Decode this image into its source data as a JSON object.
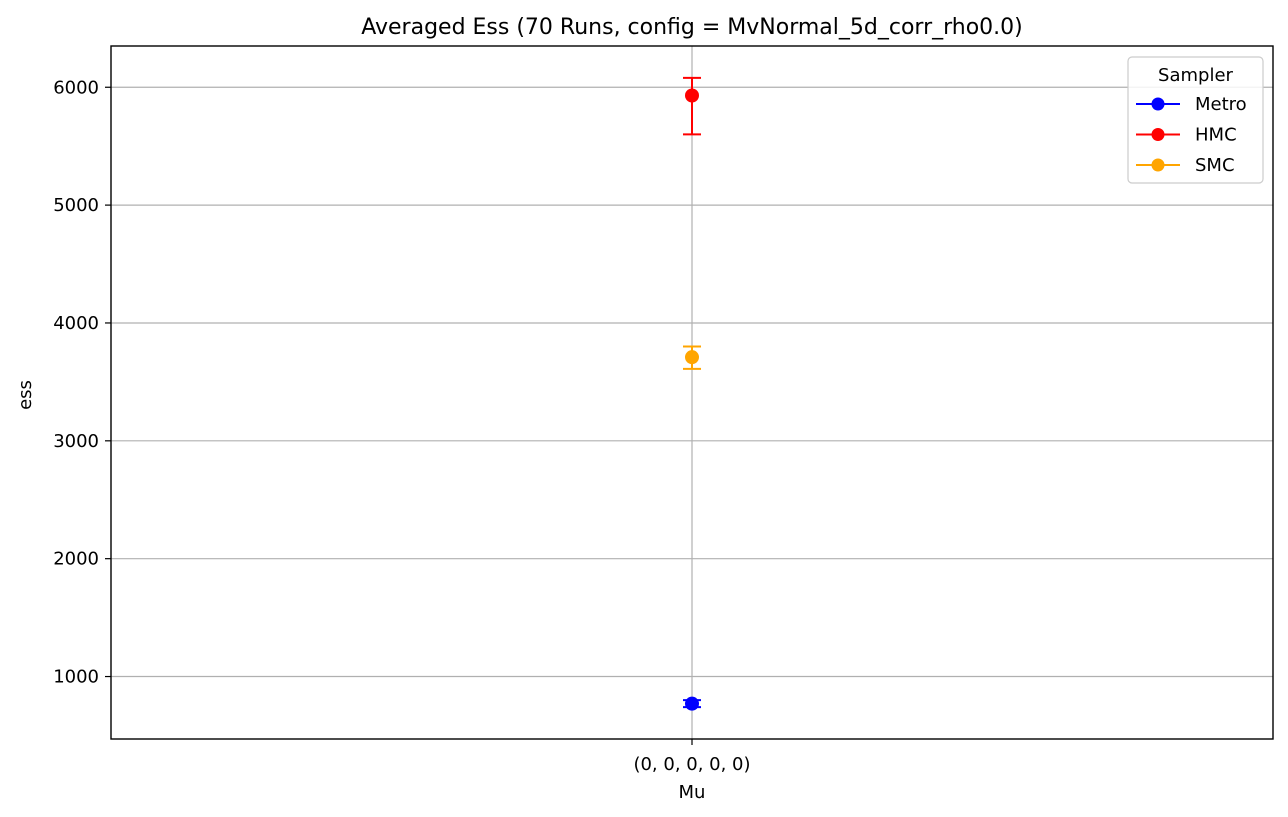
{
  "chart_data": {
    "type": "scatter",
    "title": "Averaged Ess (70 Runs, config = MvNormal_5d_corr_rho0.0)",
    "xlabel": "Mu",
    "ylabel": "ess",
    "categories": [
      "(0, 0, 0, 0, 0)"
    ],
    "ylim": [
      470,
      6350
    ],
    "yticks": [
      1000,
      2000,
      3000,
      4000,
      5000,
      6000
    ],
    "grid": true,
    "legend": {
      "title": "Sampler",
      "placement": "top-right"
    },
    "series": [
      {
        "name": "Metro",
        "color": "#0000ff",
        "values": [
          770
        ],
        "err_low": [
          740
        ],
        "err_high": [
          800
        ]
      },
      {
        "name": "HMC",
        "color": "#ff0000",
        "values": [
          5930
        ],
        "err_low": [
          5600
        ],
        "err_high": [
          6080
        ]
      },
      {
        "name": "SMC",
        "color": "#ffa500",
        "values": [
          3710
        ],
        "err_low": [
          3610
        ],
        "err_high": [
          3800
        ]
      }
    ]
  }
}
